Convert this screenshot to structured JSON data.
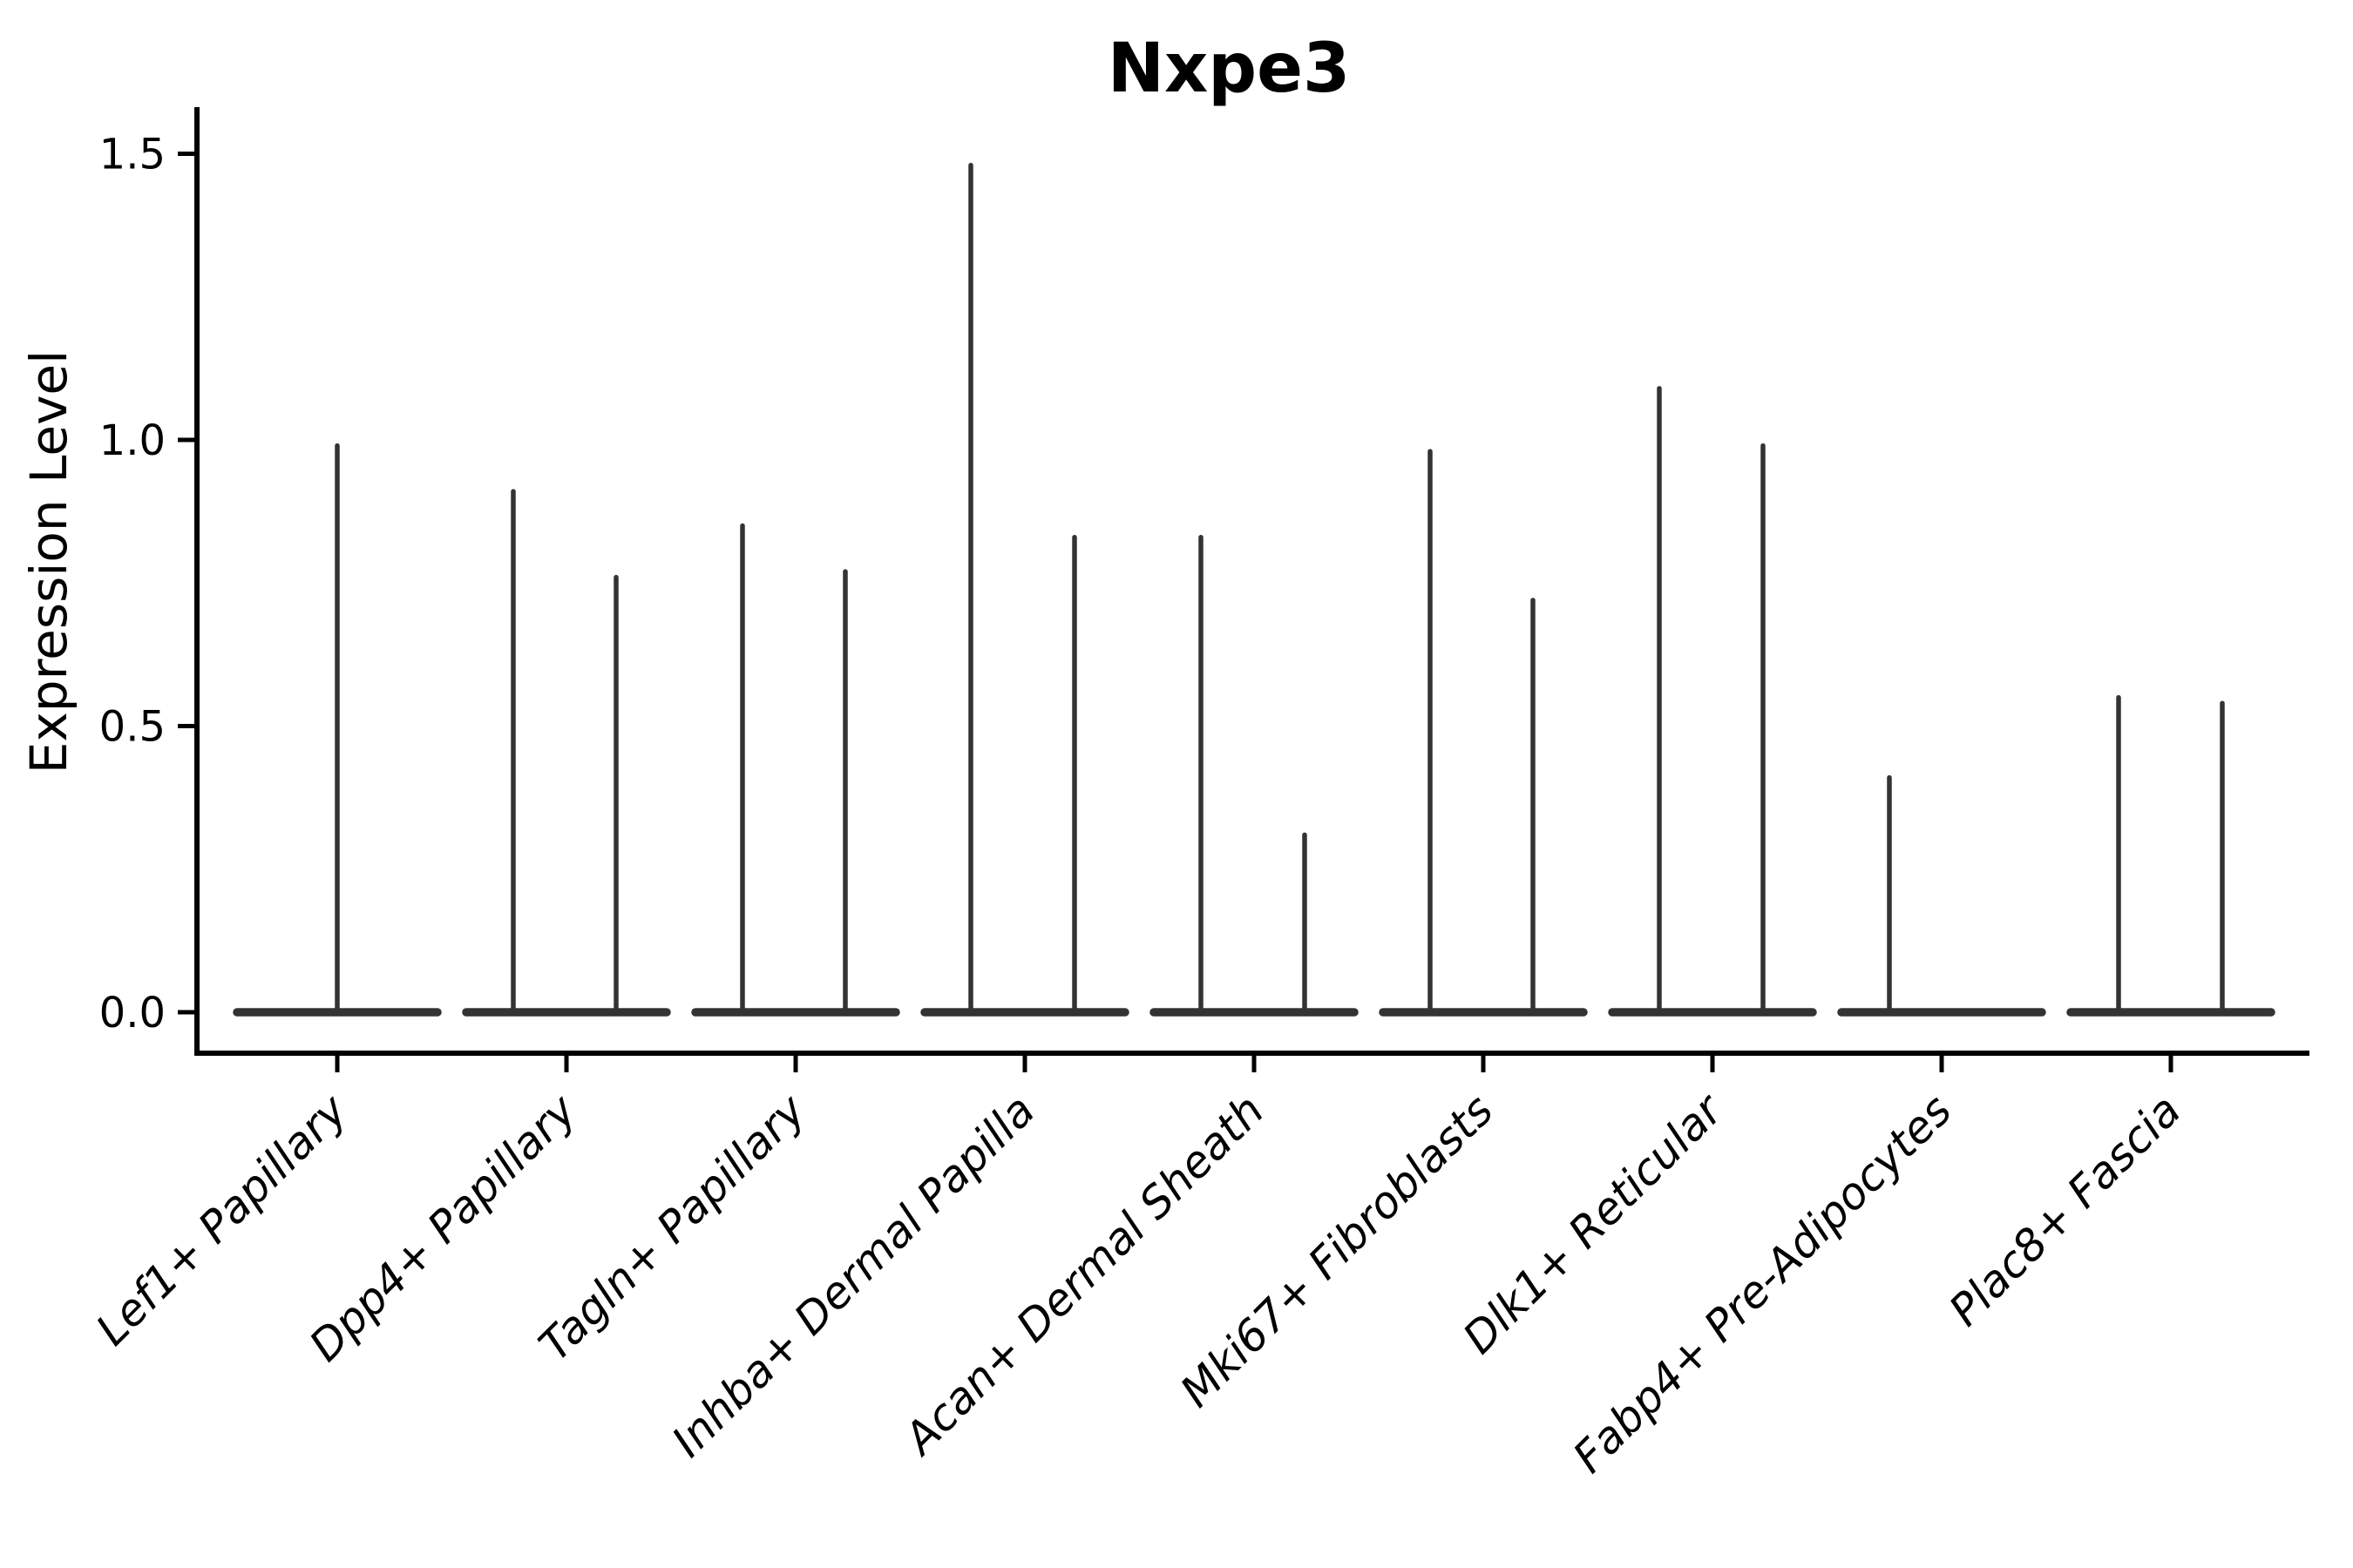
{
  "chart_data": {
    "type": "violin",
    "title": "Nxpe3",
    "xlabel": "",
    "ylabel": "Expression Level",
    "y_ticks": [
      "0.0",
      "0.5",
      "1.0",
      "1.5"
    ],
    "ylim": [
      -0.07,
      1.58
    ],
    "grid": false,
    "legend_position": "none",
    "colors": {
      "violin": "#333333",
      "axis": "#000000",
      "background": "#ffffff"
    },
    "description": "Violin plot of Nxpe3 expression; each category shows a flat violin base at 0 expression with thin needle spikes up to the maximum expressed value.",
    "categories": [
      {
        "label": "Lef1+ Papillary",
        "spikes": [
          {
            "offset": 0,
            "max": 0.99
          }
        ]
      },
      {
        "label": "Dpp4+ Papillary",
        "spikes": [
          {
            "offset": -61,
            "max": 0.91
          },
          {
            "offset": 57,
            "max": 0.76
          }
        ]
      },
      {
        "label": "Tagln+ Papillary",
        "spikes": [
          {
            "offset": -61,
            "max": 0.85
          },
          {
            "offset": 57,
            "max": 0.77
          }
        ]
      },
      {
        "label": "Inhba+ Dermal Papilla",
        "spikes": [
          {
            "offset": -62,
            "max": 1.48
          },
          {
            "offset": 57,
            "max": 0.83
          }
        ]
      },
      {
        "label": "Acan+ Dermal Sheath",
        "spikes": [
          {
            "offset": -61,
            "max": 0.83
          },
          {
            "offset": 58,
            "max": 0.31
          }
        ]
      },
      {
        "label": "Mki67+ Fibroblasts",
        "spikes": [
          {
            "offset": -61,
            "max": 0.98
          },
          {
            "offset": 57,
            "max": 0.72
          }
        ]
      },
      {
        "label": "Dlk1+ Reticular",
        "spikes": [
          {
            "offset": -61,
            "max": 1.09
          },
          {
            "offset": 58,
            "max": 0.99
          }
        ]
      },
      {
        "label": "Fabp4+ Pre-Adipocytes",
        "spikes": [
          {
            "offset": -60,
            "max": 0.41
          }
        ]
      },
      {
        "label": "Plac8+ Fascia",
        "spikes": [
          {
            "offset": -60,
            "max": 0.55
          },
          {
            "offset": 59,
            "max": 0.54
          }
        ]
      }
    ]
  }
}
